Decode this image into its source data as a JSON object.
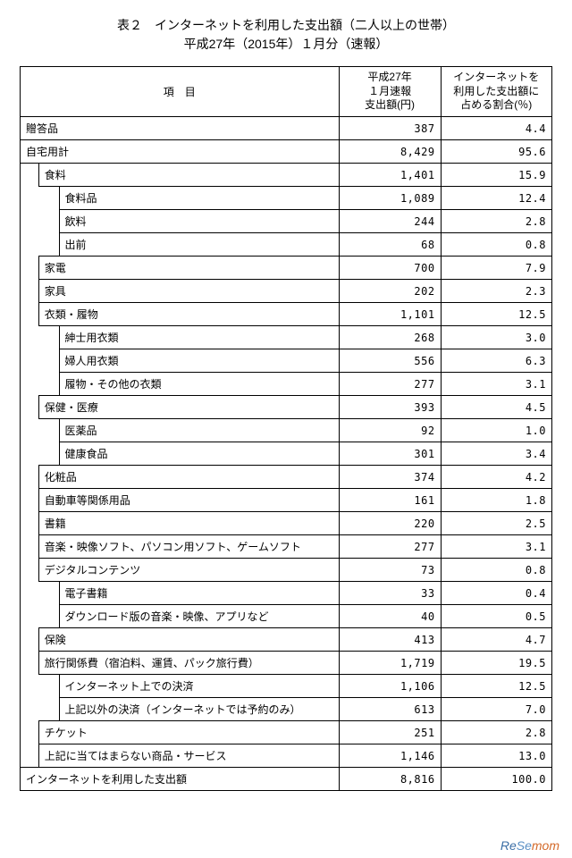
{
  "title": {
    "line1": "表２　インターネットを利用した支出額（二人以上の世帯）",
    "line2": "平成27年（2015年）１月分（速報）"
  },
  "headers": {
    "item": "項　目",
    "amount_l1": "平成27年",
    "amount_l2": "１月速報",
    "amount_l3": "支出額(円)",
    "percent_l1": "インターネットを",
    "percent_l2": "利用した支出額に",
    "percent_l3": "占める割合(％)"
  },
  "rows": [
    {
      "indent": 0,
      "label": "贈答品",
      "amount": "387",
      "percent": "4.4"
    },
    {
      "indent": 0,
      "label": "自宅用計",
      "amount": "8,429",
      "percent": "95.6"
    },
    {
      "indent": 1,
      "label": "食料",
      "amount": "1,401",
      "percent": "15.9"
    },
    {
      "indent": 2,
      "label": "食料品",
      "amount": "1,089",
      "percent": "12.4"
    },
    {
      "indent": 2,
      "label": "飲料",
      "amount": "244",
      "percent": "2.8"
    },
    {
      "indent": 2,
      "label": "出前",
      "amount": "68",
      "percent": "0.8"
    },
    {
      "indent": 1,
      "label": "家電",
      "amount": "700",
      "percent": "7.9"
    },
    {
      "indent": 1,
      "label": "家具",
      "amount": "202",
      "percent": "2.3"
    },
    {
      "indent": 1,
      "label": "衣類・履物",
      "amount": "1,101",
      "percent": "12.5"
    },
    {
      "indent": 2,
      "label": "紳士用衣類",
      "amount": "268",
      "percent": "3.0"
    },
    {
      "indent": 2,
      "label": "婦人用衣類",
      "amount": "556",
      "percent": "6.3"
    },
    {
      "indent": 2,
      "label": "履物・その他の衣類",
      "amount": "277",
      "percent": "3.1"
    },
    {
      "indent": 1,
      "label": "保健・医療",
      "amount": "393",
      "percent": "4.5"
    },
    {
      "indent": 2,
      "label": "医薬品",
      "amount": "92",
      "percent": "1.0"
    },
    {
      "indent": 2,
      "label": "健康食品",
      "amount": "301",
      "percent": "3.4"
    },
    {
      "indent": 1,
      "label": "化粧品",
      "amount": "374",
      "percent": "4.2"
    },
    {
      "indent": 1,
      "label": "自動車等関係用品",
      "amount": "161",
      "percent": "1.8"
    },
    {
      "indent": 1,
      "label": "書籍",
      "amount": "220",
      "percent": "2.5"
    },
    {
      "indent": 1,
      "label": "音楽・映像ソフト、パソコン用ソフト、ゲームソフト",
      "amount": "277",
      "percent": "3.1"
    },
    {
      "indent": 1,
      "label": "デジタルコンテンツ",
      "amount": "73",
      "percent": "0.8"
    },
    {
      "indent": 2,
      "label": "電子書籍",
      "amount": "33",
      "percent": "0.4"
    },
    {
      "indent": 2,
      "label": "ダウンロード版の音楽・映像、アプリなど",
      "amount": "40",
      "percent": "0.5"
    },
    {
      "indent": 1,
      "label": "保険",
      "amount": "413",
      "percent": "4.7"
    },
    {
      "indent": 1,
      "label": "旅行関係費（宿泊料、運賃、パック旅行費）",
      "amount": "1,719",
      "percent": "19.5"
    },
    {
      "indent": 2,
      "label": "インターネット上での決済",
      "amount": "1,106",
      "percent": "12.5"
    },
    {
      "indent": 2,
      "label": "上記以外の決済（インターネットでは予約のみ）",
      "amount": "613",
      "percent": "7.0"
    },
    {
      "indent": 1,
      "label": "チケット",
      "amount": "251",
      "percent": "2.8"
    },
    {
      "indent": 1,
      "label": "上記に当てはまらない商品・サービス",
      "amount": "1,146",
      "percent": "13.0"
    },
    {
      "indent": 0,
      "label": "インターネットを利用した支出額",
      "amount": "8,816",
      "percent": "100.0"
    }
  ],
  "watermark": {
    "part1": "Re",
    "part2": "Se",
    "part3": "mom"
  },
  "style": {
    "border_color": "#000000",
    "text_color": "#000000",
    "bg_color": "#ffffff",
    "font_size_body": 12,
    "font_size_title": 14,
    "watermark_color1": "#3b6ea5",
    "watermark_color2": "#d46a2a"
  }
}
